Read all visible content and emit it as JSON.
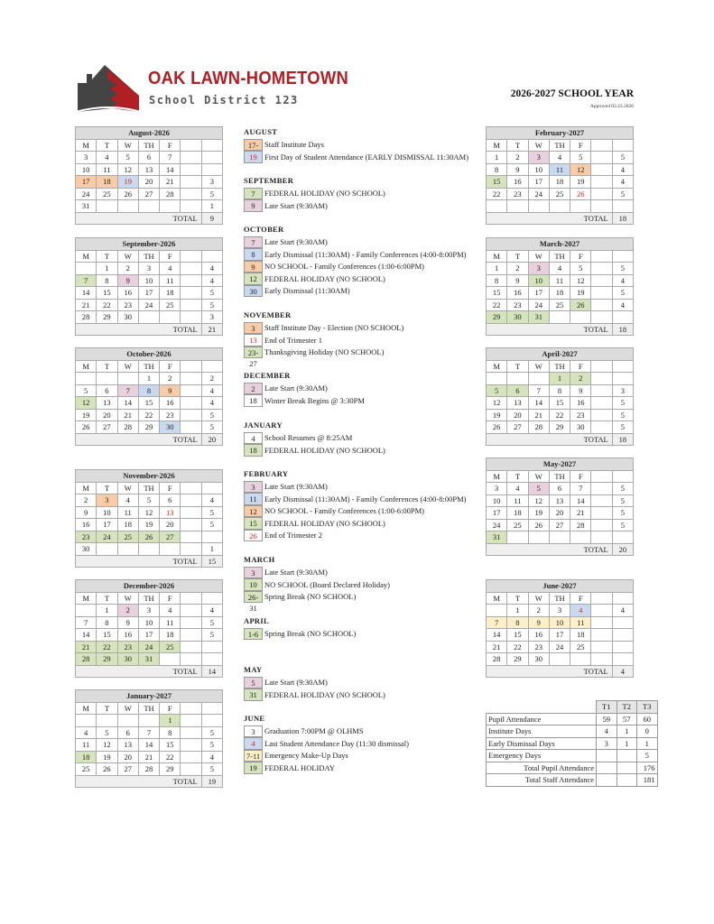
{
  "header": {
    "brand": "OAK LAWN-HOMETOWN",
    "district": "School District 123",
    "year": "2026-2027 SCHOOL YEAR",
    "approved": "Approved 02.23.2026"
  },
  "colors": {
    "orange": "#f9cba6",
    "blue": "#c9daf0",
    "green": "#d6e4bd",
    "pink": "#e8d0dc",
    "yellow": "#fdf0c8",
    "red_text": "#e21b1b",
    "brand": "#b01f24"
  },
  "weekdays": [
    "M",
    "T",
    "W",
    "TH",
    "F",
    "",
    ""
  ],
  "total_label": "TOTAL",
  "calendars": [
    {
      "title": "August-2026",
      "weeks": [
        [
          "3",
          "4",
          "5",
          "6",
          "7",
          ""
        ],
        [
          "10",
          "11",
          "12",
          "13",
          "14",
          ""
        ],
        [
          "17",
          "18",
          "19",
          "20",
          "21",
          "3"
        ],
        [
          "24",
          "25",
          "26",
          "27",
          "28",
          "5"
        ],
        [
          "31",
          "",
          "",
          "",
          "",
          "1"
        ]
      ],
      "total": "9",
      "hl": {
        "17": "o",
        "18": "o",
        "19": "b"
      },
      "red": [
        "19"
      ]
    },
    {
      "title": "September-2026",
      "weeks": [
        [
          "",
          "1",
          "2",
          "3",
          "4",
          "4"
        ],
        [
          "7",
          "8",
          "9",
          "10",
          "11",
          "4"
        ],
        [
          "14",
          "15",
          "16",
          "17",
          "18",
          "5"
        ],
        [
          "21",
          "22",
          "23",
          "24",
          "25",
          "5"
        ],
        [
          "28",
          "29",
          "30",
          "",
          "",
          "3"
        ]
      ],
      "total": "21",
      "hl": {
        "7": "g",
        "9": "p"
      },
      "red": []
    },
    {
      "title": "October-2026",
      "weeks": [
        [
          "",
          "",
          "",
          "1",
          "2",
          "2"
        ],
        [
          "5",
          "6",
          "7",
          "8",
          "9",
          "4"
        ],
        [
          "12",
          "13",
          "14",
          "15",
          "16",
          "4"
        ],
        [
          "19",
          "20",
          "21",
          "22",
          "23",
          "5"
        ],
        [
          "26",
          "27",
          "28",
          "29",
          "30",
          "5"
        ]
      ],
      "total": "20",
      "hl": {
        "7": "p",
        "8": "b",
        "9": "o",
        "12": "g",
        "30": "b"
      },
      "red": []
    },
    {
      "title": "November-2026",
      "weeks": [
        [
          "2",
          "3",
          "4",
          "5",
          "6",
          "4"
        ],
        [
          "9",
          "10",
          "11",
          "12",
          "13",
          "5"
        ],
        [
          "16",
          "17",
          "18",
          "19",
          "20",
          "5"
        ],
        [
          "23",
          "24",
          "25",
          "26",
          "27",
          ""
        ],
        [
          "30",
          "",
          "",
          "",
          "",
          "1"
        ]
      ],
      "total": "15",
      "hl": {
        "3": "o",
        "23": "g",
        "24": "g",
        "25": "g",
        "26": "g",
        "27": "g"
      },
      "red": [
        "13"
      ]
    },
    {
      "title": "December-2026",
      "weeks": [
        [
          "",
          "1",
          "2",
          "3",
          "4",
          "4"
        ],
        [
          "7",
          "8",
          "9",
          "10",
          "11",
          "5"
        ],
        [
          "14",
          "15",
          "16",
          "17",
          "18",
          "5"
        ],
        [
          "21",
          "22",
          "23",
          "24",
          "25",
          ""
        ],
        [
          "28",
          "29",
          "30",
          "31",
          "",
          ""
        ]
      ],
      "total": "14",
      "hl": {
        "2": "p",
        "21": "g",
        "22": "g",
        "23": "g",
        "24": "g",
        "25": "g",
        "28": "g",
        "29": "g",
        "30": "g",
        "31": "g"
      },
      "red": []
    },
    {
      "title": "January-2027",
      "weeks": [
        [
          "",
          "",
          "",
          "",
          "1",
          ""
        ],
        [
          "4",
          "5",
          "6",
          "7",
          "8",
          "5"
        ],
        [
          "11",
          "12",
          "13",
          "14",
          "15",
          "5"
        ],
        [
          "18",
          "19",
          "20",
          "21",
          "22",
          "4"
        ],
        [
          "25",
          "26",
          "27",
          "28",
          "29",
          "5"
        ]
      ],
      "total": "19",
      "hl": {
        "1": "g",
        "18": "g"
      },
      "red": []
    },
    {
      "title": "February-2027",
      "weeks": [
        [
          "1",
          "2",
          "3",
          "4",
          "5",
          "5"
        ],
        [
          "8",
          "9",
          "10",
          "11",
          "12",
          "4"
        ],
        [
          "15",
          "16",
          "17",
          "18",
          "19",
          "4"
        ],
        [
          "22",
          "23",
          "24",
          "25",
          "26",
          "5"
        ],
        [
          "",
          "",
          "",
          "",
          "",
          ""
        ]
      ],
      "total": "18",
      "hl": {
        "3": "p",
        "11": "b",
        "12": "o",
        "15": "g"
      },
      "red": [
        "26"
      ]
    },
    {
      "title": "March-2027",
      "weeks": [
        [
          "1",
          "2",
          "3",
          "4",
          "5",
          "5"
        ],
        [
          "8",
          "9",
          "10",
          "11",
          "12",
          "4"
        ],
        [
          "15",
          "16",
          "17",
          "18",
          "19",
          "5"
        ],
        [
          "22",
          "23",
          "24",
          "25",
          "26",
          "4"
        ],
        [
          "29",
          "30",
          "31",
          "",
          "",
          ""
        ]
      ],
      "total": "18",
      "hl": {
        "3": "p",
        "10": "g",
        "26": "g",
        "29": "g",
        "30": "g",
        "31": "g"
      },
      "red": []
    },
    {
      "title": "April-2027",
      "weeks": [
        [
          "",
          "",
          "",
          "1",
          "2",
          ""
        ],
        [
          "5",
          "6",
          "7",
          "8",
          "9",
          "3"
        ],
        [
          "12",
          "13",
          "14",
          "15",
          "16",
          "5"
        ],
        [
          "19",
          "20",
          "21",
          "22",
          "23",
          "5"
        ],
        [
          "26",
          "27",
          "28",
          "29",
          "30",
          "5"
        ]
      ],
      "total": "18",
      "hl": {
        "1": "g",
        "2": "g",
        "5": "g",
        "6": "g"
      },
      "red": []
    },
    {
      "title": "May-2027",
      "weeks": [
        [
          "3",
          "4",
          "5",
          "6",
          "7",
          "5"
        ],
        [
          "10",
          "11",
          "12",
          "13",
          "14",
          "5"
        ],
        [
          "17",
          "18",
          "19",
          "20",
          "21",
          "5"
        ],
        [
          "24",
          "25",
          "26",
          "27",
          "28",
          "5"
        ],
        [
          "31",
          "",
          "",
          "",
          "",
          ""
        ]
      ],
      "total": "20",
      "hl": {
        "5": "p",
        "31": "g"
      },
      "red": []
    },
    {
      "title": "June-2027",
      "weeks": [
        [
          "",
          "1",
          "2",
          "3",
          "4",
          "4"
        ],
        [
          "7",
          "8",
          "9",
          "10",
          "11",
          ""
        ],
        [
          "14",
          "15",
          "16",
          "17",
          "18",
          ""
        ],
        [
          "21",
          "22",
          "23",
          "24",
          "25",
          ""
        ],
        [
          "28",
          "29",
          "30",
          "",
          "",
          ""
        ]
      ],
      "total": "4",
      "hl": {
        "4": "b",
        "7": "y",
        "8": "y",
        "9": "y",
        "10": "y",
        "11": "y"
      },
      "red": [
        "4"
      ]
    }
  ],
  "events": [
    {
      "month": "AUGUST",
      "items": [
        {
          "code": "17-18",
          "c": "o",
          "text": "Staff Institute Days"
        },
        {
          "code": "19",
          "c": "b",
          "red": true,
          "text": "First Day of Student Attendance (EARLY DISMISSAL 11:30AM)"
        }
      ]
    },
    {
      "month": "SEPTEMBER",
      "items": [
        {
          "code": "7",
          "c": "g",
          "text": "FEDERAL HOLIDAY (NO SCHOOL)"
        },
        {
          "code": "9",
          "c": "p",
          "text": "Late Start (9:30AM)"
        }
      ]
    },
    {
      "month": "OCTOBER",
      "items": [
        {
          "code": "7",
          "c": "p",
          "text": "Late Start (9:30AM)"
        },
        {
          "code": "8",
          "c": "b",
          "text": "Early Dismissal (11:30AM) - Family Conferences (4:00-8:00PM)"
        },
        {
          "code": "9",
          "c": "o",
          "text": "NO SCHOOL - Family Conferences (1:00-6:00PM)"
        },
        {
          "code": "12",
          "c": "g",
          "text": "FEDERAL HOLIDAY (NO SCHOOL)"
        },
        {
          "code": "30",
          "c": "b",
          "text": "Early Dismissal (11:30AM)"
        }
      ]
    },
    {
      "month": "NOVEMBER",
      "items": [
        {
          "code": "3",
          "c": "o",
          "text": "Staff Institute Day - Election (NO SCHOOL)"
        },
        {
          "code": "13",
          "c": "w",
          "red": true,
          "text": "End of Trimester 1"
        },
        {
          "code": "23-27",
          "c": "g",
          "text": "Thanksgiving Holiday (NO SCHOOL)"
        }
      ]
    },
    {
      "month": "DECEMBER",
      "items": [
        {
          "code": "2",
          "c": "p",
          "text": "Late Start (9:30AM)"
        },
        {
          "code": "18",
          "c": "w",
          "text": "Winter Break Begins @ 3:30PM"
        }
      ]
    },
    {
      "month": "JANUARY",
      "items": [
        {
          "code": "4",
          "c": "w",
          "text": "School Resumes @ 8:25AM"
        },
        {
          "code": "18",
          "c": "g",
          "text": "FEDERAL HOLIDAY (NO SCHOOL)"
        }
      ]
    },
    {
      "month": "FEBRUARY",
      "items": [
        {
          "code": "3",
          "c": "p",
          "text": "Late Start (9:30AM)"
        },
        {
          "code": "11",
          "c": "b",
          "text": "Early Dismissal (11:30AM) - Family Conferences (4:00-8:00PM)"
        },
        {
          "code": "12",
          "c": "o",
          "text": "NO SCHOOL - Family Conferences (1:00-6:00PM)"
        },
        {
          "code": "15",
          "c": "g",
          "text": "FEDERAL HOLIDAY (NO SCHOOL)"
        },
        {
          "code": "26",
          "c": "w",
          "red": true,
          "text": "End of Trimester 2"
        }
      ]
    },
    {
      "month": "MARCH",
      "items": [
        {
          "code": "3",
          "c": "p",
          "text": "Late Start (9:30AM)"
        },
        {
          "code": "10",
          "c": "g",
          "text": "NO SCHOOL (Board Declared Holiday)"
        },
        {
          "code": "26-31",
          "c": "g",
          "text": "Spring Break (NO SCHOOL)"
        }
      ]
    },
    {
      "month": "APRIL",
      "items": [
        {
          "code": "1-6",
          "c": "g",
          "text": "Spring Break (NO SCHOOL)"
        }
      ]
    },
    {
      "month": "MAY",
      "items": [
        {
          "code": "5",
          "c": "p",
          "text": "Late Start (9:30AM)"
        },
        {
          "code": "31",
          "c": "g",
          "text": "FEDERAL HOLIDAY (NO SCHOOL)"
        }
      ]
    },
    {
      "month": "JUNE",
      "items": [
        {
          "code": "3",
          "c": "w",
          "text": "Graduation 7:00PM @ OLHMS"
        },
        {
          "code": "4",
          "c": "b",
          "red": true,
          "text": "Last Student Attendance Day (11:30 dismissal)"
        },
        {
          "code": "7-11",
          "c": "y",
          "text": "Emergency Make-Up Days"
        },
        {
          "code": "19",
          "c": "g",
          "text": "FEDERAL HOLIDAY"
        }
      ]
    }
  ],
  "stats": {
    "headers": [
      "T1",
      "T2",
      "T3"
    ],
    "rows": [
      {
        "label": "Pupil Attendance",
        "v": [
          "59",
          "57",
          "60"
        ]
      },
      {
        "label": "Institute Days",
        "v": [
          "4",
          "1",
          "0"
        ]
      },
      {
        "label": "Early Dismissal Days",
        "v": [
          "3",
          "1",
          "1"
        ]
      },
      {
        "label": "Emergency Days",
        "v": [
          "",
          "",
          "5"
        ]
      },
      {
        "label": "Total Pupil Attendance",
        "v": [
          "",
          "",
          "176"
        ],
        "right": true
      },
      {
        "label": "Total Staff Attendance",
        "v": [
          "",
          "",
          "181"
        ],
        "right": true
      }
    ]
  }
}
